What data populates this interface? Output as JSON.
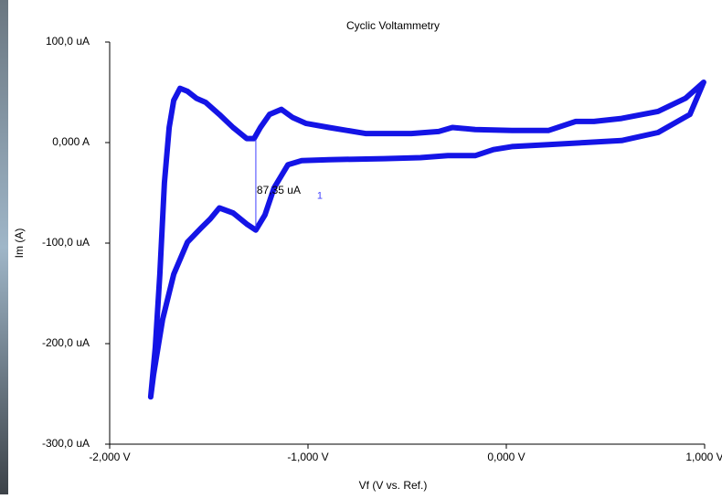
{
  "chart_data": {
    "type": "line",
    "title": "Cyclic Voltammetry",
    "x_label": "Vf (V vs. Ref.)",
    "y_label": "Im (A)",
    "xlim": [
      -2,
      1
    ],
    "xticks": [
      {
        "value": -2,
        "label": "-2,000 V"
      },
      {
        "value": -1,
        "label": "-1,000 V"
      },
      {
        "value": 0,
        "label": "0,000 V"
      },
      {
        "value": 1,
        "label": "1,000 V"
      }
    ],
    "ylim": [
      -300,
      100
    ],
    "yticks": [
      {
        "value": 100,
        "label": "100,0 uA"
      },
      {
        "value": 0,
        "label": "0,000 A"
      },
      {
        "value": -100,
        "label": "-100,0 uA"
      },
      {
        "value": -200,
        "label": "-200,0 uA"
      },
      {
        "value": -300,
        "label": "-300,0 uA"
      }
    ],
    "grid": false,
    "series": [
      {
        "color": "#1414e6",
        "x": [
          -1.793,
          -1.77,
          -1.747,
          -1.724,
          -1.7,
          -1.677,
          -1.645,
          -1.608,
          -1.562,
          -1.516,
          -1.447,
          -1.378,
          -1.309,
          -1.272,
          -1.24,
          -1.194,
          -1.134,
          -1.078,
          -1.009,
          -0.894,
          -0.71,
          -0.479,
          -0.341,
          -0.272,
          -0.157,
          0.028,
          0.212,
          0.35,
          0.442,
          0.581,
          0.765,
          0.903,
          0.995,
          0.926,
          0.765,
          0.581,
          0.396,
          0.212,
          0.028,
          -0.065,
          -0.157,
          -0.295,
          -0.433,
          -0.618,
          -0.894,
          -1.032,
          -1.101,
          -1.171,
          -1.217,
          -1.263,
          -1.309,
          -1.378,
          -1.447,
          -1.493,
          -1.539,
          -1.608,
          -1.677,
          -1.733,
          -1.779,
          -1.793
        ],
        "values": [
          -253,
          -204,
          -131,
          -40,
          15,
          42,
          54,
          51,
          44,
          40,
          28,
          15,
          4,
          4,
          15,
          28,
          33,
          25,
          19,
          15,
          9,
          9,
          11,
          15,
          13,
          12,
          12,
          21,
          21,
          24,
          31,
          44,
          60,
          28,
          10,
          2,
          0,
          -2,
          -4,
          -7,
          -13,
          -13,
          -15,
          -16,
          -17,
          -18,
          -22,
          -45,
          -72,
          -87,
          -81,
          -70,
          -65,
          -76,
          -85,
          -99,
          -131,
          -176,
          -231,
          -253
        ]
      }
    ],
    "annotation": {
      "label": "87,35 uA",
      "marker": "1",
      "x": -1.263,
      "y_top": 3,
      "y_bottom": -84.35
    }
  }
}
